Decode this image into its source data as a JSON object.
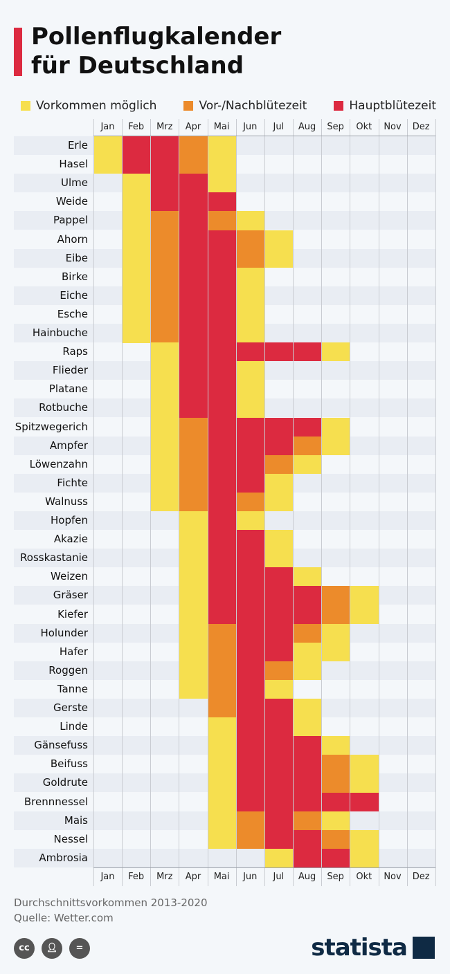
{
  "title": [
    "Pollenflugkalender",
    "für Deutschland"
  ],
  "legend": [
    {
      "label": "Vorkommen möglich",
      "color": "#f6df4f"
    },
    {
      "label": "Vor-/Nachblütezeit",
      "color": "#ec8b2b"
    },
    {
      "label": "Hauptblütezeit",
      "color": "#dc2a40"
    }
  ],
  "chart_data": {
    "type": "heatmap",
    "categories": [
      "Jan",
      "Feb",
      "Mrz",
      "Apr",
      "Mai",
      "Jun",
      "Jul",
      "Aug",
      "Sep",
      "Okt",
      "Nov",
      "Dez"
    ],
    "levels": {
      "0": "",
      "1": "Vorkommen möglich",
      "2": "Vor-/Nachblütezeit",
      "3": "Hauptblütezeit"
    },
    "rows": [
      {
        "name": "Erle",
        "values": [
          1,
          3,
          3,
          2,
          1,
          0,
          0,
          0,
          0,
          0,
          0,
          0
        ]
      },
      {
        "name": "Hasel",
        "values": [
          1,
          3,
          3,
          2,
          1,
          0,
          0,
          0,
          0,
          0,
          0,
          0
        ]
      },
      {
        "name": "Ulme",
        "values": [
          0,
          1,
          3,
          3,
          1,
          0,
          0,
          0,
          0,
          0,
          0,
          0
        ]
      },
      {
        "name": "Weide",
        "values": [
          0,
          1,
          3,
          3,
          3,
          0,
          0,
          0,
          0,
          0,
          0,
          0
        ]
      },
      {
        "name": "Pappel",
        "values": [
          0,
          1,
          2,
          3,
          2,
          1,
          0,
          0,
          0,
          0,
          0,
          0
        ]
      },
      {
        "name": "Ahorn",
        "values": [
          0,
          1,
          2,
          3,
          3,
          2,
          1,
          0,
          0,
          0,
          0,
          0
        ]
      },
      {
        "name": "Eibe",
        "values": [
          0,
          1,
          2,
          3,
          3,
          2,
          1,
          0,
          0,
          0,
          0,
          0
        ]
      },
      {
        "name": "Birke",
        "values": [
          0,
          1,
          2,
          3,
          3,
          1,
          0,
          0,
          0,
          0,
          0,
          0
        ]
      },
      {
        "name": "Eiche",
        "values": [
          0,
          1,
          2,
          3,
          3,
          1,
          0,
          0,
          0,
          0,
          0,
          0
        ]
      },
      {
        "name": "Esche",
        "values": [
          0,
          1,
          2,
          3,
          3,
          1,
          0,
          0,
          0,
          0,
          0,
          0
        ]
      },
      {
        "name": "Hainbuche",
        "values": [
          0,
          1,
          2,
          3,
          3,
          1,
          0,
          0,
          0,
          0,
          0,
          0
        ]
      },
      {
        "name": "Raps",
        "values": [
          0,
          0,
          1,
          3,
          3,
          3,
          3,
          3,
          1,
          0,
          0,
          0
        ]
      },
      {
        "name": "Flieder",
        "values": [
          0,
          0,
          1,
          3,
          3,
          1,
          0,
          0,
          0,
          0,
          0,
          0
        ]
      },
      {
        "name": "Platane",
        "values": [
          0,
          0,
          1,
          3,
          3,
          1,
          0,
          0,
          0,
          0,
          0,
          0
        ]
      },
      {
        "name": "Rotbuche",
        "values": [
          0,
          0,
          1,
          3,
          3,
          1,
          0,
          0,
          0,
          0,
          0,
          0
        ]
      },
      {
        "name": "Spitzwegerich",
        "values": [
          0,
          0,
          1,
          2,
          3,
          3,
          3,
          3,
          1,
          0,
          0,
          0
        ]
      },
      {
        "name": "Ampfer",
        "values": [
          0,
          0,
          1,
          2,
          3,
          3,
          3,
          2,
          1,
          0,
          0,
          0
        ]
      },
      {
        "name": "Löwenzahn",
        "values": [
          0,
          0,
          1,
          2,
          3,
          3,
          2,
          1,
          0,
          0,
          0,
          0
        ]
      },
      {
        "name": "Fichte",
        "values": [
          0,
          0,
          1,
          2,
          3,
          3,
          1,
          0,
          0,
          0,
          0,
          0
        ]
      },
      {
        "name": "Walnuss",
        "values": [
          0,
          0,
          1,
          2,
          3,
          2,
          1,
          0,
          0,
          0,
          0,
          0
        ]
      },
      {
        "name": "Hopfen",
        "values": [
          0,
          0,
          0,
          1,
          3,
          1,
          0,
          0,
          0,
          0,
          0,
          0
        ]
      },
      {
        "name": "Akazie",
        "values": [
          0,
          0,
          0,
          1,
          3,
          3,
          1,
          0,
          0,
          0,
          0,
          0
        ]
      },
      {
        "name": "Rosskastanie",
        "values": [
          0,
          0,
          0,
          1,
          3,
          3,
          1,
          0,
          0,
          0,
          0,
          0
        ]
      },
      {
        "name": "Weizen",
        "values": [
          0,
          0,
          0,
          1,
          3,
          3,
          3,
          1,
          0,
          0,
          0,
          0
        ]
      },
      {
        "name": "Gräser",
        "values": [
          0,
          0,
          0,
          1,
          3,
          3,
          3,
          3,
          2,
          1,
          0,
          0
        ]
      },
      {
        "name": "Kiefer",
        "values": [
          0,
          0,
          0,
          1,
          3,
          3,
          3,
          3,
          2,
          1,
          0,
          0
        ]
      },
      {
        "name": "Holunder",
        "values": [
          0,
          0,
          0,
          1,
          2,
          3,
          3,
          2,
          1,
          0,
          0,
          0
        ]
      },
      {
        "name": "Hafer",
        "values": [
          0,
          0,
          0,
          1,
          2,
          3,
          3,
          1,
          1,
          0,
          0,
          0
        ]
      },
      {
        "name": "Roggen",
        "values": [
          0,
          0,
          0,
          1,
          2,
          3,
          2,
          1,
          0,
          0,
          0,
          0
        ]
      },
      {
        "name": "Tanne",
        "values": [
          0,
          0,
          0,
          1,
          2,
          3,
          1,
          0,
          0,
          0,
          0,
          0
        ]
      },
      {
        "name": "Gerste",
        "values": [
          0,
          0,
          0,
          0,
          2,
          3,
          3,
          1,
          0,
          0,
          0,
          0
        ]
      },
      {
        "name": "Linde",
        "values": [
          0,
          0,
          0,
          0,
          1,
          3,
          3,
          1,
          0,
          0,
          0,
          0
        ]
      },
      {
        "name": "Gänsefuss",
        "values": [
          0,
          0,
          0,
          0,
          1,
          3,
          3,
          3,
          1,
          0,
          0,
          0
        ]
      },
      {
        "name": "Beifuss",
        "values": [
          0,
          0,
          0,
          0,
          1,
          3,
          3,
          3,
          2,
          1,
          0,
          0
        ]
      },
      {
        "name": "Goldrute",
        "values": [
          0,
          0,
          0,
          0,
          1,
          3,
          3,
          3,
          2,
          1,
          0,
          0
        ]
      },
      {
        "name": "Brennnessel",
        "values": [
          0,
          0,
          0,
          0,
          1,
          3,
          3,
          3,
          3,
          3,
          0,
          0
        ]
      },
      {
        "name": "Mais",
        "values": [
          0,
          0,
          0,
          0,
          1,
          2,
          3,
          2,
          1,
          0,
          0,
          0
        ]
      },
      {
        "name": "Nessel",
        "values": [
          0,
          0,
          0,
          0,
          1,
          2,
          3,
          3,
          2,
          1,
          0,
          0
        ]
      },
      {
        "name": "Ambrosia",
        "values": [
          0,
          0,
          0,
          0,
          0,
          0,
          1,
          3,
          3,
          1,
          0,
          0
        ]
      }
    ]
  },
  "footer": {
    "note": "Durchschnittsvorkommen 2013-2020",
    "source": "Quelle: Wetter.com"
  },
  "license_icons": [
    "cc-icon",
    "by-icon",
    "nd-icon"
  ],
  "brand": "statista"
}
